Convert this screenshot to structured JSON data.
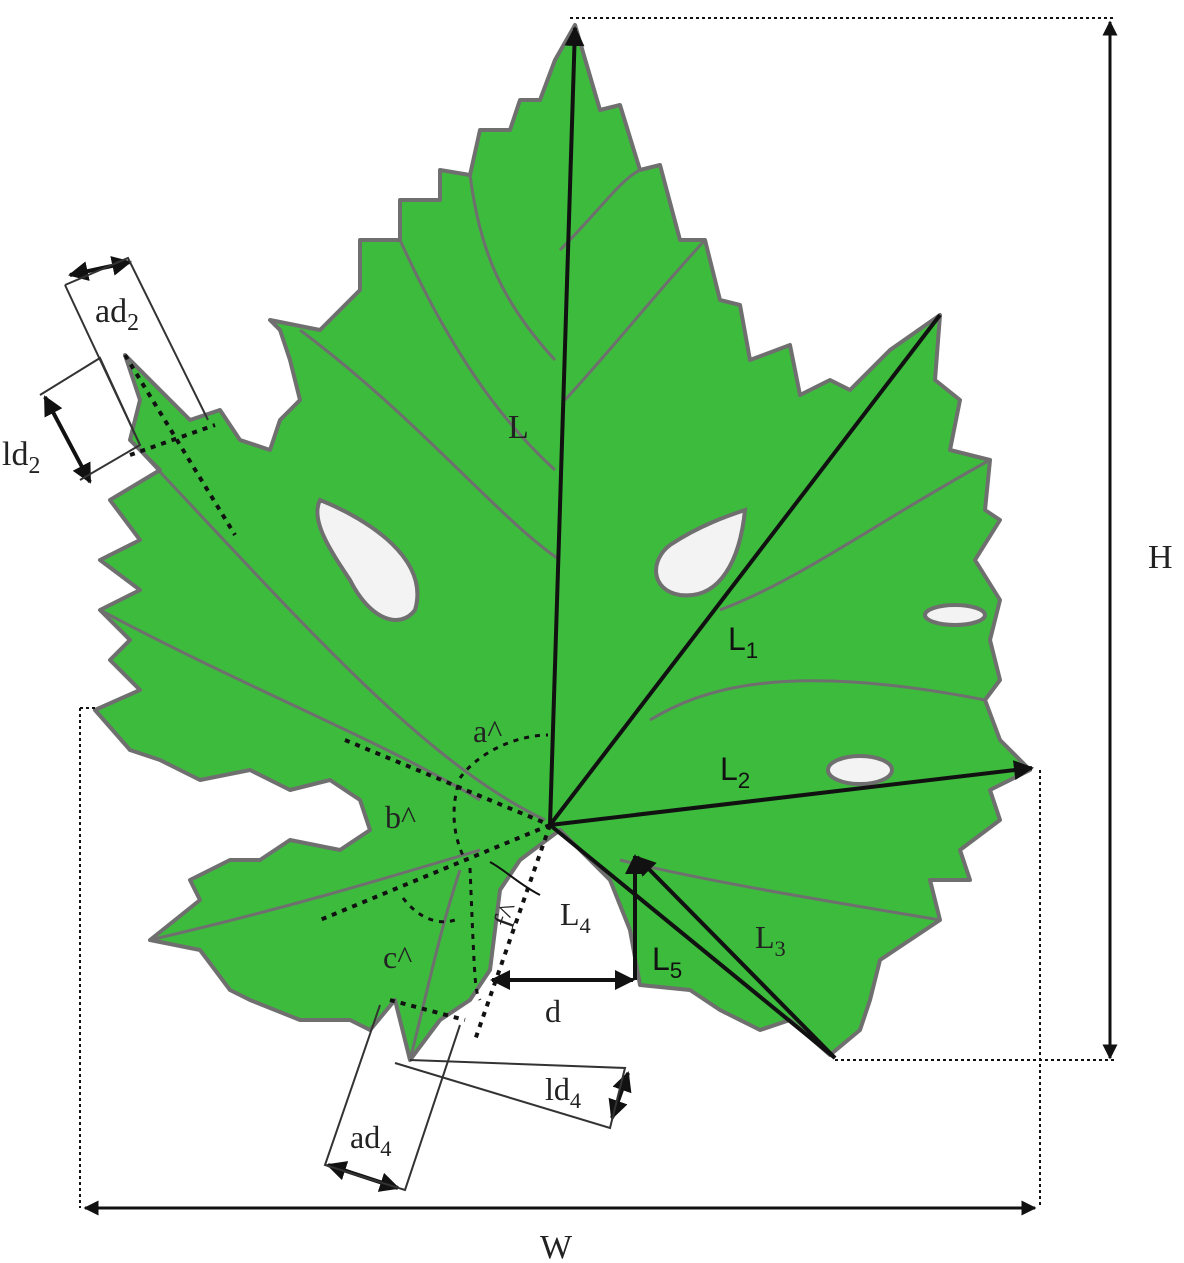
{
  "labels": [
    {
      "base": "ad",
      "sub": "2"
    },
    {
      "base": "ld",
      "sub": "2"
    },
    {
      "base": "L"
    },
    {
      "base": "H"
    },
    {
      "base": "L",
      "sub": "1"
    },
    {
      "base": "a^"
    },
    {
      "base": "L",
      "sub": "2"
    },
    {
      "base": "b^"
    },
    {
      "base": "f^"
    },
    {
      "base": "L",
      "sub": "4"
    },
    {
      "base": "L",
      "sub": "3"
    },
    {
      "base": "c^"
    },
    {
      "base": "L",
      "sub": "5"
    },
    {
      "base": "d"
    },
    {
      "base": "ld",
      "sub": "4"
    },
    {
      "base": "ad",
      "sub": "4"
    },
    {
      "base": "W"
    }
  ]
}
